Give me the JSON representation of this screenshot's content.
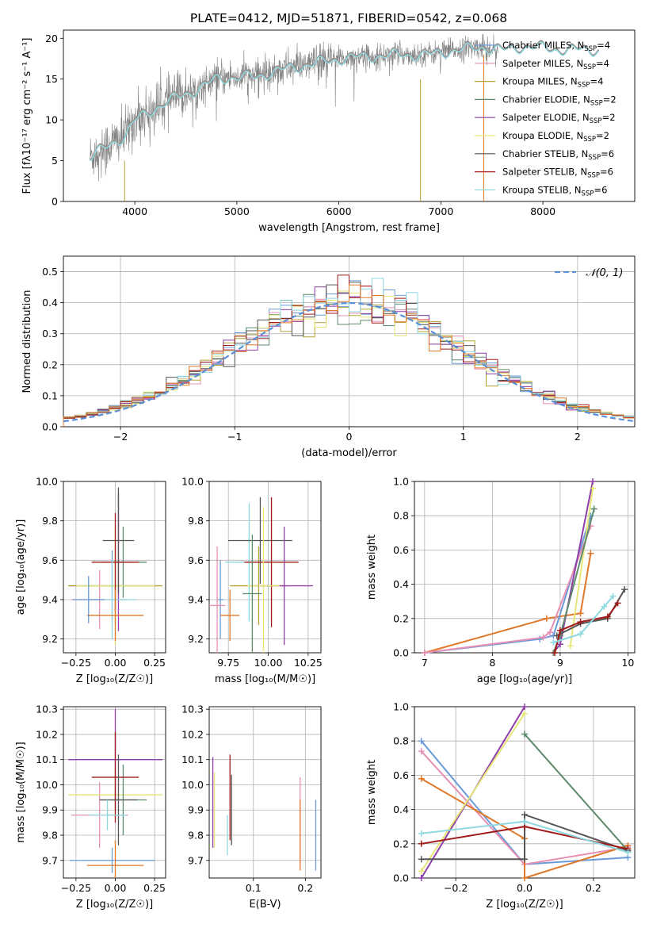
{
  "figure": {
    "title": "PLATE=0412, MJD=51871, FIBERID=0542, z=0.068"
  },
  "chart_data": [
    {
      "id": "spectrum",
      "type": "line",
      "title": "PLATE=0412, MJD=51871, FIBERID=0542, z=0.068",
      "xlabel": "wavelength [Angstrom, rest frame]",
      "ylabel": "Flux [fλ10⁻¹⁷ erg cm⁻² s⁻¹ A⁻¹]",
      "xlim": [
        3300,
        8900
      ],
      "ylim": [
        0,
        21
      ],
      "xticks": [
        4000,
        5000,
        6000,
        7000,
        8000
      ],
      "yticks": [
        0,
        5,
        10,
        15,
        20
      ],
      "grid": false,
      "legend_position": "right",
      "legend": [
        {
          "label": "Chabrier MILES, N",
          "sub": "SSP",
          "suffix": "=4",
          "color": "#6a9bd8"
        },
        {
          "label": "Salpeter MILES, N",
          "sub": "SSP",
          "suffix": "=4",
          "color": "#e88fb4"
        },
        {
          "label": "Kroupa MILES, N",
          "sub": "SSP",
          "suffix": "=4",
          "color": "#b5a233"
        },
        {
          "label": "Chabrier ELODIE, N",
          "sub": "SSP",
          "suffix": "=2",
          "color": "#5c8a6a"
        },
        {
          "label": "Salpeter ELODIE, N",
          "sub": "SSP",
          "suffix": "=2",
          "color": "#8e3fa8"
        },
        {
          "label": "Kroupa ELODIE, N",
          "sub": "SSP",
          "suffix": "=2",
          "color": "#e6e678"
        },
        {
          "label": "Chabrier STELIB, N",
          "sub": "SSP",
          "suffix": "=6",
          "color": "#555555"
        },
        {
          "label": "Salpeter STELIB, N",
          "sub": "SSP",
          "suffix": "=6",
          "color": "#a01a1a"
        },
        {
          "label": "Kroupa STELIB, N",
          "sub": "SSP",
          "suffix": "=6",
          "color": "#8fd8e0"
        }
      ],
      "continuum_knots": {
        "x": [
          3560,
          3700,
          3900,
          4000,
          4200,
          4400,
          4600,
          4800,
          5000,
          5200,
          5400,
          5600,
          5800,
          6000,
          6200,
          6400,
          6600,
          6800,
          7000,
          7200,
          7400,
          7600,
          7800,
          8000,
          8200,
          8400,
          8550
        ],
        "y": [
          5.5,
          6.6,
          8.1,
          10.0,
          11.5,
          12.8,
          13.7,
          15.1,
          15.3,
          15.4,
          16.1,
          16.6,
          17.1,
          17.5,
          17.8,
          17.9,
          18.1,
          18.0,
          18.3,
          18.7,
          19.0,
          18.6,
          19.0,
          18.9,
          18.6,
          18.7,
          18.6
        ]
      },
      "data_color": "#808080",
      "model_color": "#6ad2dc"
    },
    {
      "id": "residuals",
      "type": "bar",
      "xlabel": "(data-model)/error",
      "ylabel": "Normed distribution",
      "xlim": [
        -2.5,
        2.5
      ],
      "ylim": [
        0,
        0.55
      ],
      "xticks": [
        -2,
        -1,
        0,
        1,
        2
      ],
      "yticks": [
        0.0,
        0.1,
        0.2,
        0.3,
        0.4,
        0.5
      ],
      "grid": true,
      "legend_position": "top-right",
      "legend": [
        {
          "label": "𝒩(0, 1)",
          "color": "#5b8fd6",
          "dash": true
        }
      ],
      "bin_width": 0.1
    },
    {
      "id": "age_vs_Z",
      "type": "scatter",
      "xlabel": "Z [log₁₀(Z/Z☉)]",
      "ylabel": "age  [log₁₀(age/yr)]",
      "xlim": [
        -0.33,
        0.32
      ],
      "ylim": [
        9.13,
        10.0
      ],
      "xticks": [
        -0.25,
        0.0,
        0.25
      ],
      "yticks": [
        9.2,
        9.4,
        9.6,
        9.8,
        10.0
      ],
      "grid": true,
      "points": [
        {
          "x": -0.02,
          "xerr": 0.27,
          "y": 9.47,
          "yerr": 0.18,
          "color": "#6a9bd8"
        },
        {
          "x": -0.1,
          "xerr": 0.18,
          "y": 9.4,
          "yerr": 0.15,
          "color": "#e88fb4"
        },
        {
          "x": 0.0,
          "xerr": 0.3,
          "y": 9.47,
          "yerr": 0.2,
          "color": "#b5a233"
        },
        {
          "x": 0.05,
          "xerr": 0.15,
          "y": 9.59,
          "yerr": 0.18,
          "color": "#5c8a6a"
        },
        {
          "x": 0.02,
          "xerr": 0.1,
          "y": 9.59,
          "yerr": 0.35,
          "color": "#8e3fa8"
        },
        {
          "x": 0.0,
          "xerr": 0.25,
          "y": 9.47,
          "yerr": 0.3,
          "color": "#e6e678"
        },
        {
          "x": 0.02,
          "xerr": 0.1,
          "y": 9.7,
          "yerr": 0.27,
          "color": "#555555"
        },
        {
          "x": 0.0,
          "xerr": 0.15,
          "y": 9.59,
          "yerr": 0.25,
          "color": "#a01a1a"
        },
        {
          "x": -0.02,
          "xerr": 0.15,
          "y": 9.4,
          "yerr": 0.2,
          "color": "#8fd8e0"
        },
        {
          "x": 0.0,
          "xerr": 0.18,
          "y": 9.32,
          "yerr": 0.13,
          "color": "#e0782a"
        },
        {
          "x": -0.17,
          "xerr": 0.1,
          "y": 9.4,
          "yerr": 0.12,
          "color": "#6a9bd8"
        }
      ]
    },
    {
      "id": "age_vs_mass",
      "type": "scatter",
      "xlabel": "mass [log₁₀(M/M☉)]",
      "ylabel": "",
      "xlim": [
        9.63,
        10.33
      ],
      "ylim": [
        9.13,
        10.0
      ],
      "xticks": [
        9.75,
        10.0,
        10.25
      ],
      "yticks": [
        9.2,
        9.4,
        9.6,
        9.8,
        10.0
      ],
      "grid": true,
      "points": [
        {
          "x": 9.7,
          "xerr": 0.02,
          "y": 9.4,
          "yerr": 0.2,
          "color": "#6a9bd8"
        },
        {
          "x": 9.88,
          "xerr": 0.15,
          "y": 9.59,
          "yerr": 0.3,
          "color": "#8fd8e0"
        },
        {
          "x": 9.94,
          "xerr": 0.18,
          "y": 9.47,
          "yerr": 0.2,
          "color": "#b5a233"
        },
        {
          "x": 9.95,
          "xerr": 0.2,
          "y": 9.7,
          "yerr": 0.22,
          "color": "#555555"
        },
        {
          "x": 10.02,
          "xerr": 0.17,
          "y": 9.59,
          "yerr": 0.33,
          "color": "#a01a1a"
        },
        {
          "x": 10.1,
          "xerr": 0.18,
          "y": 9.47,
          "yerr": 0.3,
          "color": "#8e3fa8"
        },
        {
          "x": 9.97,
          "xerr": 0.1,
          "y": 9.47,
          "yerr": 0.4,
          "color": "#e6e678"
        },
        {
          "x": 9.9,
          "xerr": 0.06,
          "y": 9.43,
          "yerr": 0.3,
          "color": "#5c8a6a"
        },
        {
          "x": 9.68,
          "xerr": 0.05,
          "y": 9.37,
          "yerr": 0.3,
          "color": "#e88fb4"
        },
        {
          "x": 9.76,
          "xerr": 0.06,
          "y": 9.32,
          "yerr": 0.13,
          "color": "#e0782a"
        }
      ]
    },
    {
      "id": "massweight_vs_age",
      "type": "line",
      "xlabel": "age  [log₁₀(age/yr)]",
      "ylabel": "mass weight",
      "xlim": [
        6.85,
        10.1
      ],
      "ylim": [
        0,
        1.0
      ],
      "xticks": [
        7,
        8,
        9,
        10
      ],
      "yticks": [
        0.0,
        0.2,
        0.4,
        0.6,
        0.8,
        1.0
      ],
      "grid": true,
      "series": [
        {
          "color": "#e0782a",
          "x": [
            7.0,
            8.8,
            9.3,
            9.45
          ],
          "y": [
            0.0,
            0.2,
            0.23,
            0.58
          ]
        },
        {
          "color": "#6a9bd8",
          "x": [
            7.0,
            8.7,
            8.9,
            9.45
          ],
          "y": [
            0.0,
            0.08,
            0.1,
            0.8
          ]
        },
        {
          "color": "#e88fb4",
          "x": [
            7.0,
            8.75,
            8.85,
            9.45
          ],
          "y": [
            0.0,
            0.09,
            0.12,
            0.74
          ]
        },
        {
          "color": "#8e3fa8",
          "x": [
            8.9,
            9.0,
            9.48
          ],
          "y": [
            0.0,
            0.05,
            1.0
          ]
        },
        {
          "color": "#e6e678",
          "x": [
            9.15,
            9.48
          ],
          "y": [
            0.04,
            0.96
          ]
        },
        {
          "color": "#5c8a6a",
          "x": [
            8.9,
            9.0,
            9.5
          ],
          "y": [
            0.0,
            0.1,
            0.84
          ]
        },
        {
          "color": "#555555",
          "x": [
            8.95,
            9.3,
            9.7,
            9.95
          ],
          "y": [
            0.1,
            0.17,
            0.2,
            0.37
          ]
        },
        {
          "color": "#a01a1a",
          "x": [
            8.92,
            9.0,
            9.3,
            9.7,
            9.85
          ],
          "y": [
            0.0,
            0.13,
            0.18,
            0.21,
            0.29
          ]
        },
        {
          "color": "#8fd8e0",
          "x": [
            8.9,
            9.3,
            9.65,
            9.78
          ],
          "y": [
            0.06,
            0.11,
            0.27,
            0.33
          ]
        }
      ]
    },
    {
      "id": "mass_vs_Z",
      "type": "scatter",
      "xlabel": "Z [log₁₀(Z/Z☉)]",
      "ylabel": "mass [log₁₀(M/M☉)]",
      "xlim": [
        -0.33,
        0.32
      ],
      "ylim": [
        9.63,
        10.31
      ],
      "xticks": [
        -0.25,
        0.0,
        0.25
      ],
      "yticks": [
        9.7,
        9.8,
        9.9,
        10.0,
        10.1,
        10.2,
        10.3
      ],
      "grid": true,
      "points": [
        {
          "x": -0.02,
          "xerr": 0.27,
          "y": 9.7,
          "yerr": 0.05,
          "color": "#6a9bd8"
        },
        {
          "x": -0.1,
          "xerr": 0.18,
          "y": 9.88,
          "yerr": 0.13,
          "color": "#e88fb4"
        },
        {
          "x": 0.0,
          "xerr": 0.3,
          "y": 9.96,
          "yerr": 0.1,
          "color": "#e6e678"
        },
        {
          "x": 0.05,
          "xerr": 0.15,
          "y": 9.94,
          "yerr": 0.14,
          "color": "#5c8a6a"
        },
        {
          "x": 0.0,
          "xerr": 0.3,
          "y": 10.1,
          "yerr": 0.2,
          "color": "#8e3fa8"
        },
        {
          "x": 0.0,
          "xerr": 0.15,
          "y": 10.03,
          "yerr": 0.18,
          "color": "#a01a1a"
        },
        {
          "x": 0.02,
          "xerr": 0.12,
          "y": 9.94,
          "yerr": 0.18,
          "color": "#555555"
        },
        {
          "x": 0.0,
          "xerr": 0.18,
          "y": 9.68,
          "yerr": 0.1,
          "color": "#e0782a"
        },
        {
          "x": -0.05,
          "xerr": 0.12,
          "y": 9.88,
          "yerr": 0.06,
          "color": "#8fd8e0"
        }
      ]
    },
    {
      "id": "mass_vs_ebv",
      "type": "scatter",
      "xlabel": "E(B-V)",
      "ylabel": "",
      "xlim": [
        0.015,
        0.23
      ],
      "ylim": [
        9.63,
        10.31
      ],
      "xticks": [
        0.1,
        0.2
      ],
      "yticks": [
        9.7,
        9.8,
        9.9,
        10.0,
        10.1,
        10.2,
        10.3
      ],
      "grid": true,
      "points": [
        {
          "x": 0.022,
          "y": 9.93,
          "yerr": 0.18,
          "color": "#8e3fa8"
        },
        {
          "x": 0.025,
          "y": 9.9,
          "yerr": 0.15,
          "color": "#e6e678"
        },
        {
          "x": 0.055,
          "y": 9.95,
          "yerr": 0.17,
          "color": "#a01a1a"
        },
        {
          "x": 0.058,
          "y": 9.9,
          "yerr": 0.14,
          "color": "#555555"
        },
        {
          "x": 0.05,
          "y": 9.8,
          "yerr": 0.08,
          "color": "#8fd8e0"
        },
        {
          "x": 0.19,
          "y": 9.86,
          "yerr": 0.17,
          "color": "#e88fb4"
        },
        {
          "x": 0.19,
          "y": 9.8,
          "yerr": 0.14,
          "color": "#e0782a"
        },
        {
          "x": 0.22,
          "y": 9.8,
          "yerr": 0.14,
          "color": "#6a9bd8"
        }
      ]
    },
    {
      "id": "massweight_vs_Z",
      "type": "line",
      "xlabel": "Z [log₁₀(Z/Z☉)]",
      "ylabel": "mass weight",
      "xlim": [
        -0.32,
        0.32
      ],
      "ylim": [
        0,
        1.0
      ],
      "xticks": [
        -0.2,
        0.0,
        0.2
      ],
      "yticks": [
        0.0,
        0.2,
        0.4,
        0.6,
        0.8,
        1.0
      ],
      "grid": true,
      "series": [
        {
          "color": "#6a9bd8",
          "x": [
            -0.3,
            0.0,
            0.3
          ],
          "y": [
            0.8,
            0.08,
            0.12
          ]
        },
        {
          "color": "#e88fb4",
          "x": [
            -0.3,
            0.0,
            0.3
          ],
          "y": [
            0.74,
            0.08,
            0.18
          ]
        },
        {
          "color": "#e0782a",
          "x": [
            -0.3,
            0.0,
            0.0,
            0.3
          ],
          "y": [
            0.58,
            0.23,
            0.0,
            0.19
          ]
        },
        {
          "color": "#8e3fa8",
          "x": [
            -0.3,
            0.0
          ],
          "y": [
            0.0,
            1.0
          ]
        },
        {
          "color": "#e6e678",
          "x": [
            -0.3,
            0.0
          ],
          "y": [
            0.04,
            0.96
          ]
        },
        {
          "color": "#5c8a6a",
          "x": [
            0.0,
            0.3
          ],
          "y": [
            0.84,
            0.16
          ]
        },
        {
          "color": "#555555",
          "x": [
            -0.3,
            0.0,
            0.0,
            0.3
          ],
          "y": [
            0.11,
            0.11,
            0.37,
            0.16
          ]
        },
        {
          "color": "#a01a1a",
          "x": [
            -0.3,
            0.0,
            0.3
          ],
          "y": [
            0.2,
            0.3,
            0.17
          ]
        },
        {
          "color": "#8fd8e0",
          "x": [
            -0.3,
            0.0,
            0.3
          ],
          "y": [
            0.26,
            0.33,
            0.15
          ]
        }
      ]
    }
  ]
}
